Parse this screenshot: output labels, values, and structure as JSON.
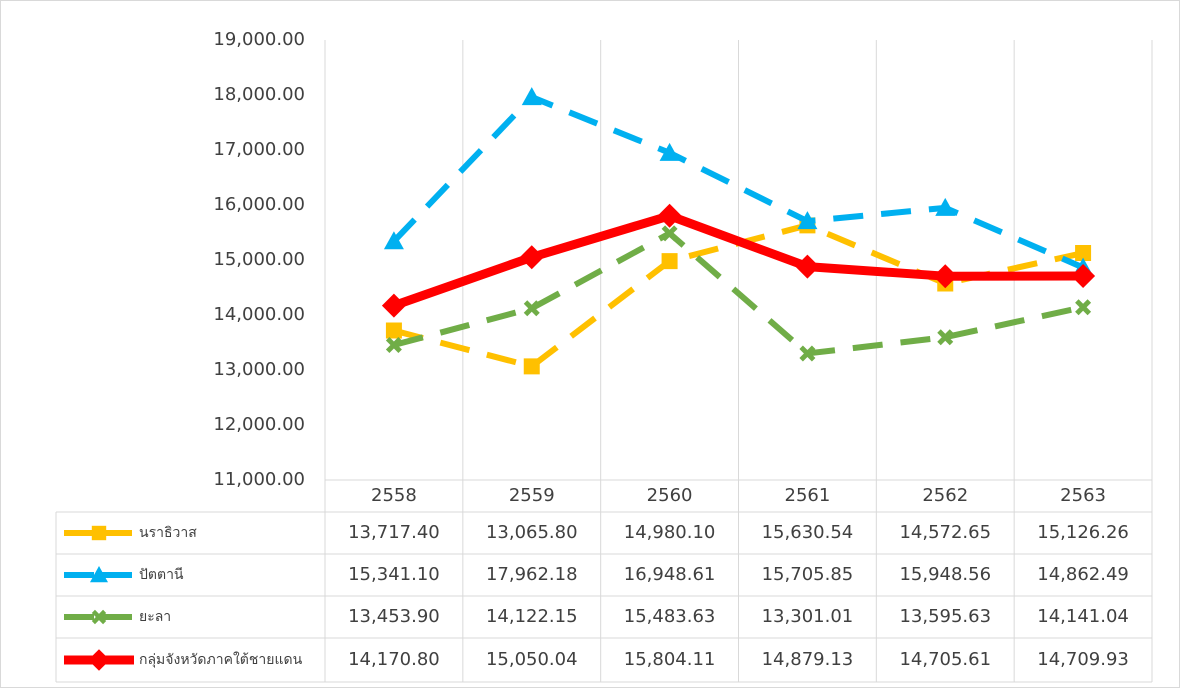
{
  "chart_data": {
    "type": "line",
    "categories": [
      "2558",
      "2559",
      "2560",
      "2561",
      "2562",
      "2563"
    ],
    "ylim": [
      11000,
      19000
    ],
    "yticks": [
      {
        "value": 11000,
        "label": "11,000.00"
      },
      {
        "value": 12000,
        "label": "12,000.00"
      },
      {
        "value": 13000,
        "label": "13,000.00"
      },
      {
        "value": 14000,
        "label": "14,000.00"
      },
      {
        "value": 15000,
        "label": "15,000.00"
      },
      {
        "value": 16000,
        "label": "16,000.00"
      },
      {
        "value": 17000,
        "label": "17,000.00"
      },
      {
        "value": 18000,
        "label": "18,000.00"
      },
      {
        "value": 19000,
        "label": "19,000.00"
      }
    ],
    "grid": true,
    "series": [
      {
        "name": "นราธิวาส",
        "color": "#FFC000",
        "marker": "square",
        "dashed": true,
        "values": [
          13717.4,
          13065.8,
          14980.1,
          15630.54,
          14572.65,
          15126.26
        ],
        "value_labels": [
          "13,717.40",
          "13,065.80",
          "14,980.10",
          "15,630.54",
          "14,572.65",
          "15,126.26"
        ]
      },
      {
        "name": "ปัตตานี",
        "color": "#00B0F0",
        "marker": "triangle",
        "dashed": true,
        "values": [
          15341.1,
          17962.18,
          16948.61,
          15705.85,
          15948.56,
          14862.49
        ],
        "value_labels": [
          "15,341.10",
          "17,962.18",
          "16,948.61",
          "15,705.85",
          "15,948.56",
          "14,862.49"
        ]
      },
      {
        "name": "ยะลา",
        "color": "#70AD47",
        "marker": "x",
        "dashed": true,
        "values": [
          13453.9,
          14122.15,
          15483.63,
          13301.01,
          13595.63,
          14141.04
        ],
        "value_labels": [
          "13,453.90",
          "14,122.15",
          "15,483.63",
          "13,301.01",
          "13,595.63",
          "14,141.04"
        ]
      },
      {
        "name": "กลุ่มจังหวัดภาคใต้ชายแดน",
        "color": "#FF0000",
        "marker": "diamond",
        "dashed": false,
        "values": [
          14170.8,
          15050.04,
          15804.11,
          14879.13,
          14705.61,
          14709.93
        ],
        "value_labels": [
          "14,170.80",
          "15,050.04",
          "15,804.11",
          "14,879.13",
          "14,705.61",
          "14,709.93"
        ]
      }
    ]
  }
}
